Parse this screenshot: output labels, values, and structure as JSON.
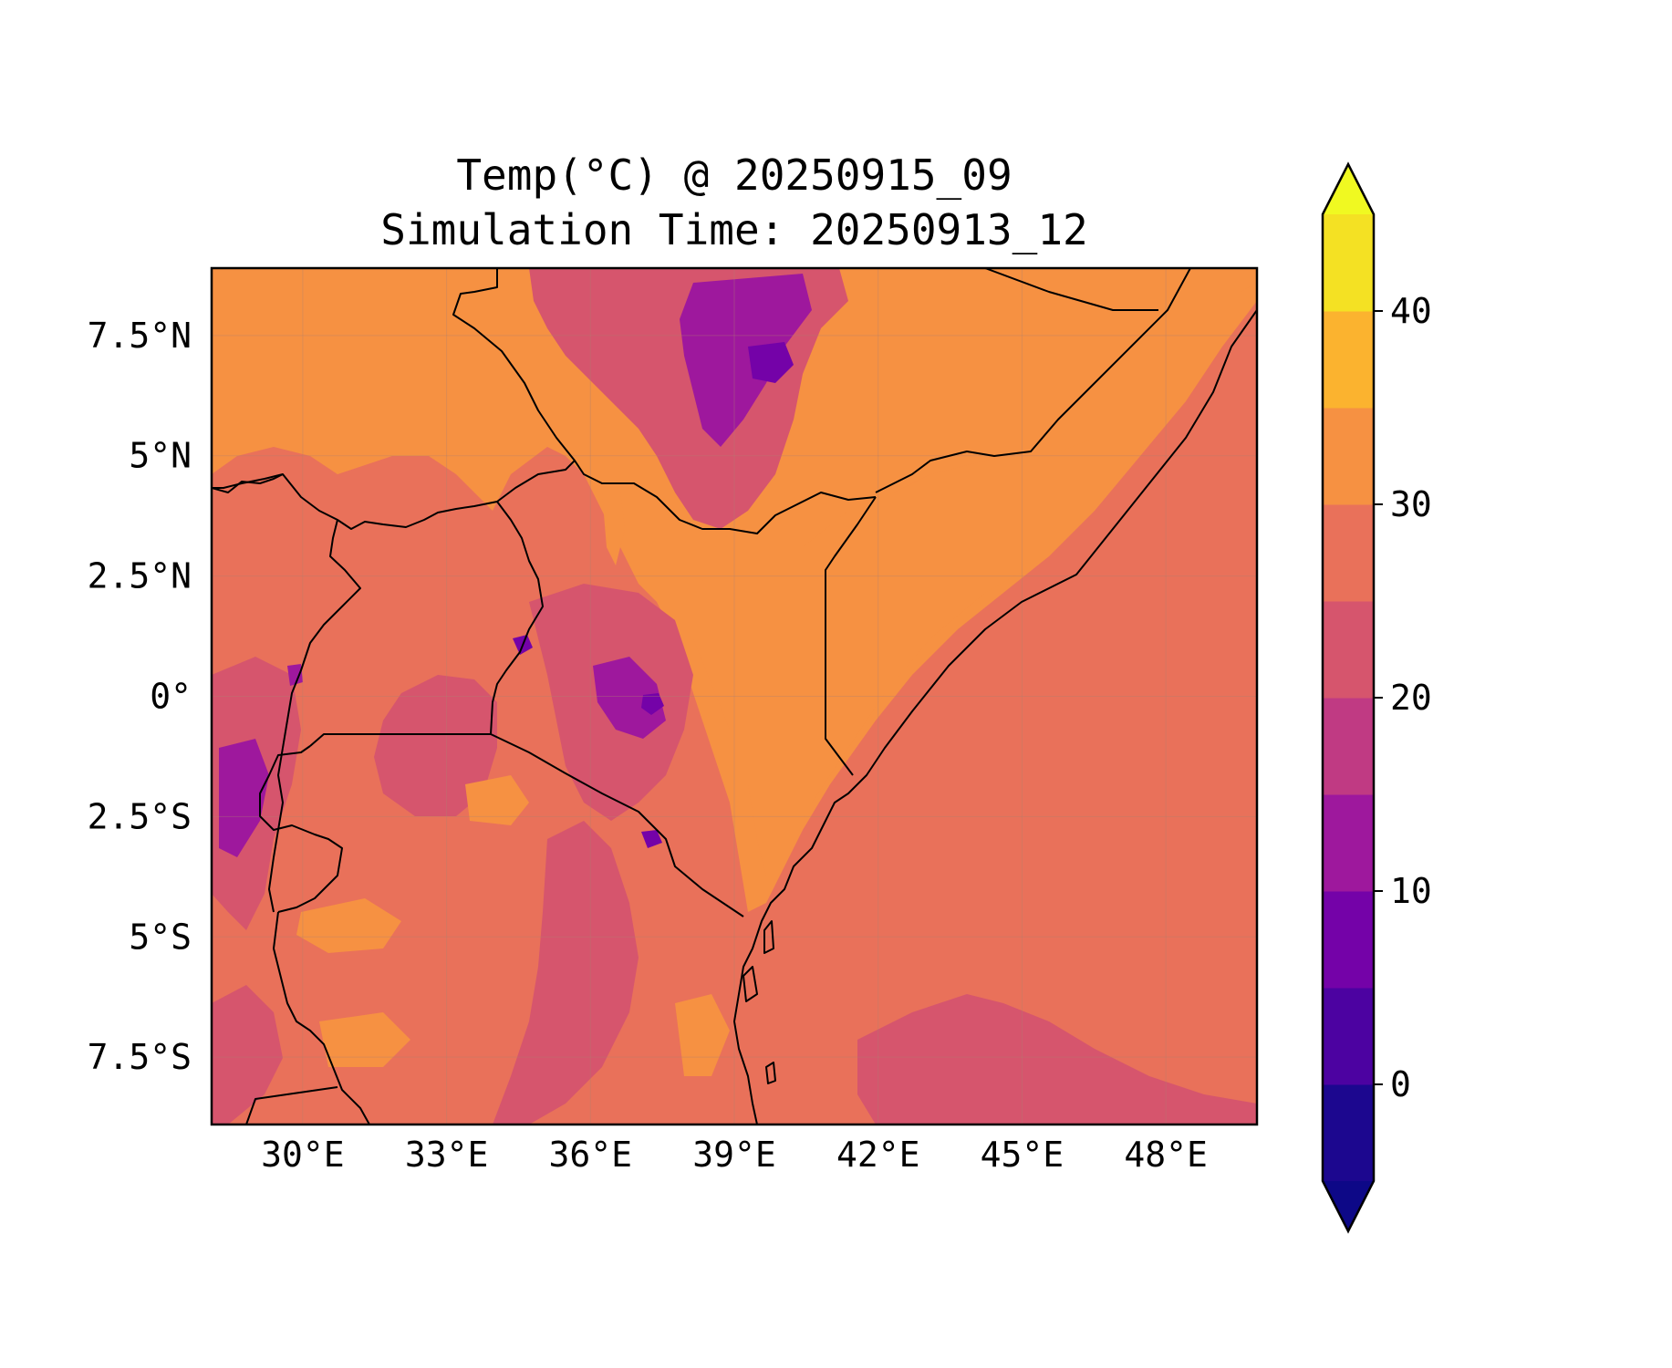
{
  "figure": {
    "title_line1": "Temp(°C) @ 20250915_09",
    "title_line2": "Simulation Time: 20250913_12"
  },
  "chart_data": {
    "type": "heatmap",
    "title": "Temp(°C) @ 20250915_09",
    "subtitle": "Simulation Time: 20250913_12",
    "x_axis": {
      "ticks": [
        "30°E",
        "33°E",
        "36°E",
        "39°E",
        "42°E",
        "45°E",
        "48°E"
      ],
      "values": [
        30,
        33,
        36,
        39,
        42,
        45,
        48
      ],
      "range": [
        28.1,
        49.9
      ]
    },
    "y_axis": {
      "ticks": [
        "7.5°N",
        "5°N",
        "2.5°N",
        "0°",
        "2.5°S",
        "5°S",
        "7.5°S"
      ],
      "values": [
        7.5,
        5,
        2.5,
        0,
        -2.5,
        -5,
        -7.5
      ],
      "range": [
        -8.9,
        8.9
      ]
    },
    "colorbar": {
      "ticks": [
        "0",
        "10",
        "20",
        "30",
        "40"
      ],
      "tick_values": [
        0,
        10,
        20,
        30,
        40
      ],
      "levels": [
        -5,
        0,
        5,
        10,
        15,
        20,
        25,
        30,
        35,
        40,
        45
      ],
      "colors": [
        "#1c078f",
        "#4c02a1",
        "#7402a8",
        "#9e189d",
        "#c03a83",
        "#d6556d",
        "#e9715a",
        "#f69142",
        "#fbb32f",
        "#f4e123"
      ],
      "under_color": "#0d0887",
      "over_color": "#f0f921",
      "extend": "both"
    },
    "grid": true
  },
  "regions": {
    "ocean_level_color": "#e9715a",
    "land_hot_color": "#f69142",
    "highland_color": "#d6556d",
    "high_peak_color": "#9e189d",
    "cold_peak_color": "#7402a8"
  }
}
